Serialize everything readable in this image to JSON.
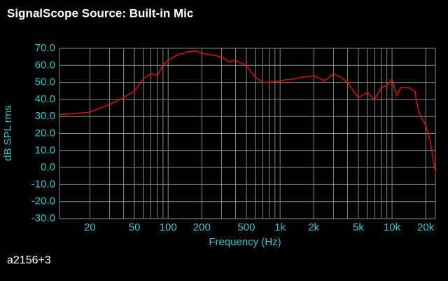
{
  "chart_data": {
    "type": "line",
    "title": "SignalScope Source:  Built-in Mic",
    "ylabel": "dB SPL rms",
    "xlabel": "Frequency (Hz)",
    "footer": "a2156+3",
    "log_x": true,
    "grid": true,
    "color": "#e01010",
    "xlim": [
      10.7,
      24400
    ],
    "xticks": [
      20,
      50,
      100,
      200,
      500,
      {
        "value": 1000,
        "label": "1k"
      },
      {
        "value": 2000,
        "label": "2k"
      },
      {
        "value": 5000,
        "label": "5k"
      },
      {
        "value": 10000,
        "label": "10k"
      },
      {
        "value": 20000,
        "label": "20k"
      }
    ],
    "x_minor_ticks": [
      30,
      40,
      60,
      70,
      80,
      90,
      300,
      400,
      600,
      700,
      800,
      900,
      3000,
      4000,
      6000,
      7000,
      8000,
      9000
    ],
    "ylim": [
      -30,
      70
    ],
    "yticks": [
      {
        "value": 70,
        "label": "70.0"
      },
      {
        "value": 60,
        "label": "60.0"
      },
      {
        "value": 50,
        "label": "50.0"
      },
      {
        "value": 40,
        "label": "40.0"
      },
      {
        "value": 30,
        "label": "30.0"
      },
      {
        "value": 20,
        "label": "20.0"
      },
      {
        "value": 10,
        "label": "10.0"
      },
      {
        "value": 0,
        "label": "0.0"
      },
      {
        "value": -10,
        "label": "-10.0"
      },
      {
        "value": -20,
        "label": "-20.0"
      },
      {
        "value": -30,
        "label": "-30.0"
      }
    ],
    "x": [
      10.7,
      20,
      30,
      40,
      50,
      60,
      70,
      80,
      90,
      100,
      120,
      150,
      180,
      200,
      250,
      300,
      350,
      400,
      500,
      600,
      700,
      800,
      1000,
      1300,
      1600,
      2000,
      2500,
      3000,
      3500,
      4000,
      5000,
      6000,
      7000,
      8000,
      9000,
      10000,
      11000,
      12000,
      14000,
      16000,
      17000,
      18000,
      20000,
      22000,
      24400
    ],
    "values": [
      31,
      32.5,
      37,
      41,
      45,
      52,
      55,
      54,
      60,
      63,
      66,
      68,
      68.5,
      67,
      66,
      65,
      62,
      63,
      60,
      53,
      50,
      50,
      51,
      52,
      53,
      54,
      51,
      55,
      53,
      50,
      41,
      44,
      40,
      47,
      48,
      52,
      42,
      47,
      47,
      45,
      35,
      30,
      25,
      15,
      -3
    ]
  }
}
